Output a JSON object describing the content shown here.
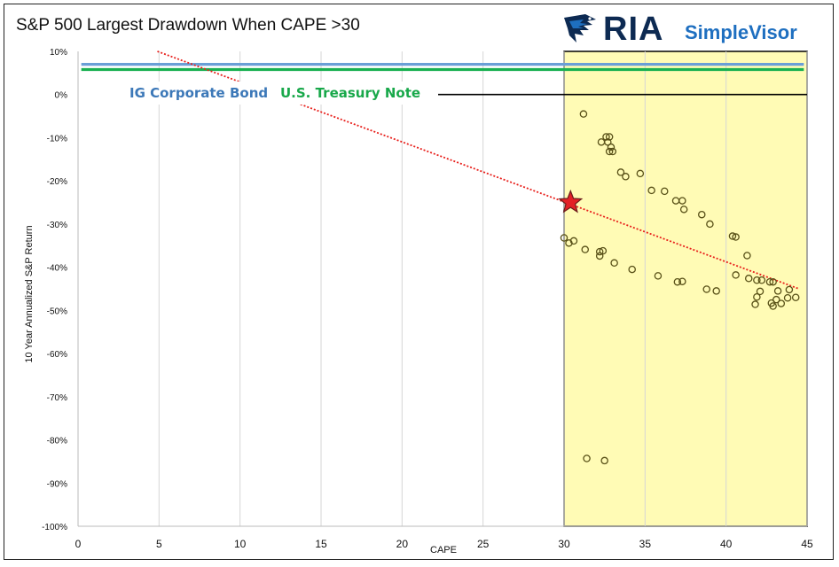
{
  "header": {
    "title": "S&P 500 Largest Drawdown When CAPE >30"
  },
  "logo": {
    "brand": "RIA",
    "product": "SimpleVisor"
  },
  "chart_data": {
    "type": "scatter",
    "title": "S&P 500 Largest Drawdown When CAPE >30",
    "xlabel": "CAPE",
    "ylabel": "10 Year Annualized S&P Return",
    "xlim": [
      0,
      45
    ],
    "ylim": [
      -100,
      10
    ],
    "x_ticks": [
      "0",
      "5",
      "10",
      "15",
      "20",
      "25",
      "30",
      "35",
      "40",
      "45"
    ],
    "y_ticks": [
      "10%",
      "0%",
      "-10%",
      "-20%",
      "-30%",
      "-40%",
      "-50%",
      "-60%",
      "-70%",
      "-80%",
      "-90%",
      "-100%"
    ],
    "grid": "vertical",
    "highlight_region": {
      "x_from": 30,
      "x_to": 45,
      "color": "#fffbb5"
    },
    "reference_lines": [
      {
        "name": "IG Corporate Bond",
        "y": 7.0,
        "color": "#6a9fd6"
      },
      {
        "name": "U.S. Treasury Note",
        "y": 5.8,
        "color": "#18b050"
      }
    ],
    "zero_line": {
      "y": 0,
      "color": "#000000"
    },
    "trend_line": {
      "x1": 4.9,
      "y1": 10,
      "x2": 44.5,
      "y2": -45,
      "color": "#e8201c"
    },
    "marker": {
      "x": 30.4,
      "y": -25,
      "color": "#e32026"
    },
    "points": [
      [
        31.2,
        -4.5
      ],
      [
        32.6,
        -9.8
      ],
      [
        32.8,
        -9.8
      ],
      [
        32.3,
        -11.0
      ],
      [
        32.7,
        -11.0
      ],
      [
        32.9,
        -12.2
      ],
      [
        33.0,
        -13.2
      ],
      [
        32.8,
        -13.2
      ],
      [
        33.5,
        -18.0
      ],
      [
        33.8,
        -19.0
      ],
      [
        34.7,
        -18.3
      ],
      [
        35.4,
        -22.2
      ],
      [
        36.2,
        -22.4
      ],
      [
        36.9,
        -24.6
      ],
      [
        37.3,
        -24.6
      ],
      [
        37.4,
        -26.6
      ],
      [
        38.5,
        -27.8
      ],
      [
        39.0,
        -30.0
      ],
      [
        40.4,
        -32.8
      ],
      [
        40.6,
        -33.0
      ],
      [
        41.3,
        -37.3
      ],
      [
        40.6,
        -41.8
      ],
      [
        41.4,
        -42.6
      ],
      [
        41.9,
        -43.0
      ],
      [
        42.2,
        -43.0
      ],
      [
        42.7,
        -43.4
      ],
      [
        42.9,
        -43.4
      ],
      [
        43.2,
        -45.5
      ],
      [
        43.9,
        -45.2
      ],
      [
        42.1,
        -45.6
      ],
      [
        41.9,
        -46.9
      ],
      [
        41.8,
        -48.6
      ],
      [
        42.8,
        -48.3
      ],
      [
        42.9,
        -49.0
      ],
      [
        43.4,
        -48.4
      ],
      [
        43.8,
        -47.1
      ],
      [
        44.3,
        -47.0
      ],
      [
        43.1,
        -47.5
      ],
      [
        30.0,
        -33.2
      ],
      [
        30.3,
        -34.4
      ],
      [
        30.6,
        -33.9
      ],
      [
        31.3,
        -35.9
      ],
      [
        32.2,
        -36.4
      ],
      [
        32.4,
        -36.2
      ],
      [
        32.2,
        -37.4
      ],
      [
        33.1,
        -39.0
      ],
      [
        34.2,
        -40.5
      ],
      [
        35.8,
        -42.0
      ],
      [
        37.0,
        -43.4
      ],
      [
        37.3,
        -43.3
      ],
      [
        38.8,
        -45.1
      ],
      [
        39.4,
        -45.5
      ],
      [
        31.4,
        -84.3
      ],
      [
        32.5,
        -84.8
      ]
    ]
  }
}
